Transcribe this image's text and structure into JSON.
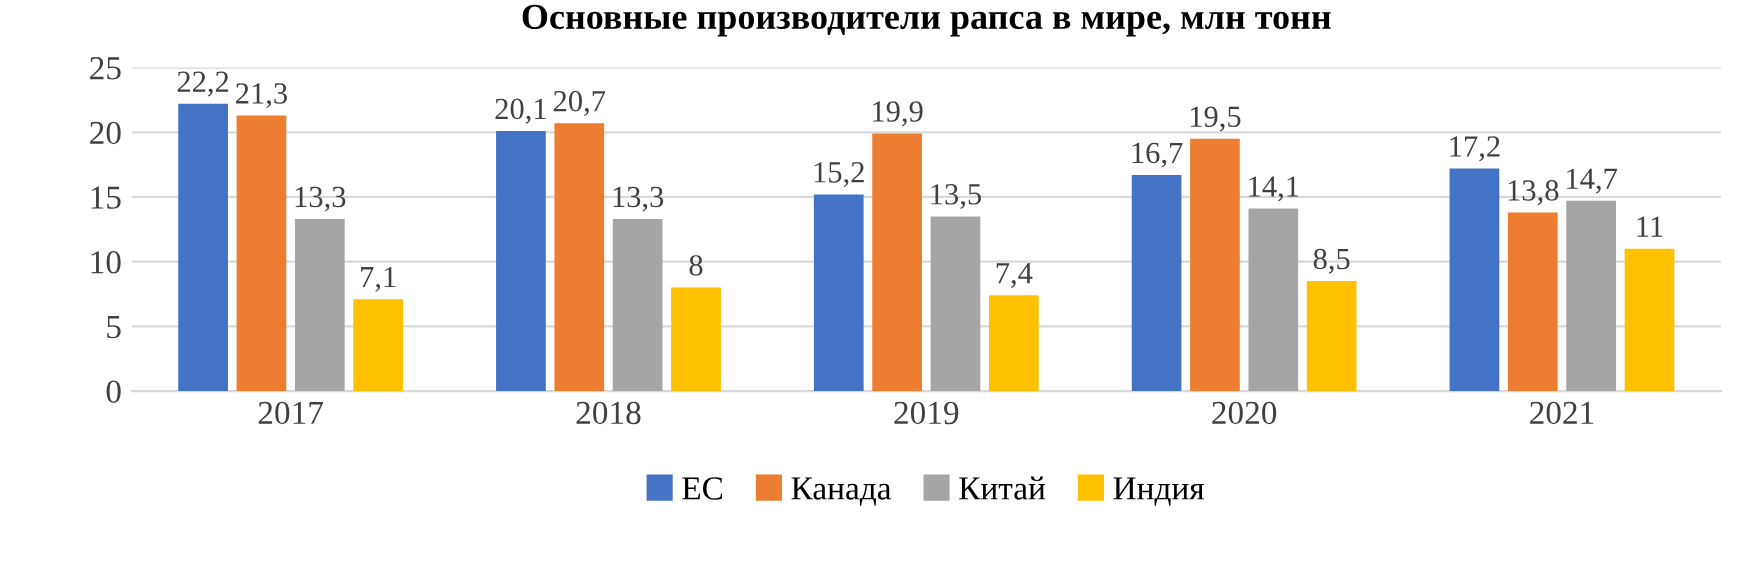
{
  "chart_data": {
    "type": "bar",
    "title": "Основные производители рапса в мире, млн тонн",
    "categories": [
      "2017",
      "2018",
      "2019",
      "2020",
      "2021"
    ],
    "series": [
      {
        "name": "ЕС",
        "color": "#4472c4",
        "values": [
          22.2,
          20.1,
          15.2,
          16.7,
          17.2
        ],
        "value_labels": [
          "22,2",
          "20,1",
          "15,2",
          "16,7",
          "17,2"
        ]
      },
      {
        "name": "Канада",
        "color": "#ed7d31",
        "values": [
          21.3,
          20.7,
          19.9,
          19.5,
          13.8
        ],
        "value_labels": [
          "21,3",
          "20,7",
          "19,9",
          "19,5",
          "13,8"
        ]
      },
      {
        "name": "Китай",
        "color": "#a5a5a5",
        "values": [
          13.3,
          13.3,
          13.5,
          14.1,
          14.7
        ],
        "value_labels": [
          "13,3",
          "13,3",
          "13,5",
          "14,1",
          "14,7"
        ]
      },
      {
        "name": "Индия",
        "color": "#ffc000",
        "values": [
          7.1,
          8,
          7.4,
          8.5,
          11
        ],
        "value_labels": [
          "7,1",
          "8",
          "7,4",
          "8,5",
          "11"
        ]
      }
    ],
    "ylim": [
      0,
      25
    ],
    "yticks": [
      0,
      5,
      10,
      15,
      20,
      25
    ],
    "grid": "y",
    "legend": "bottom"
  }
}
